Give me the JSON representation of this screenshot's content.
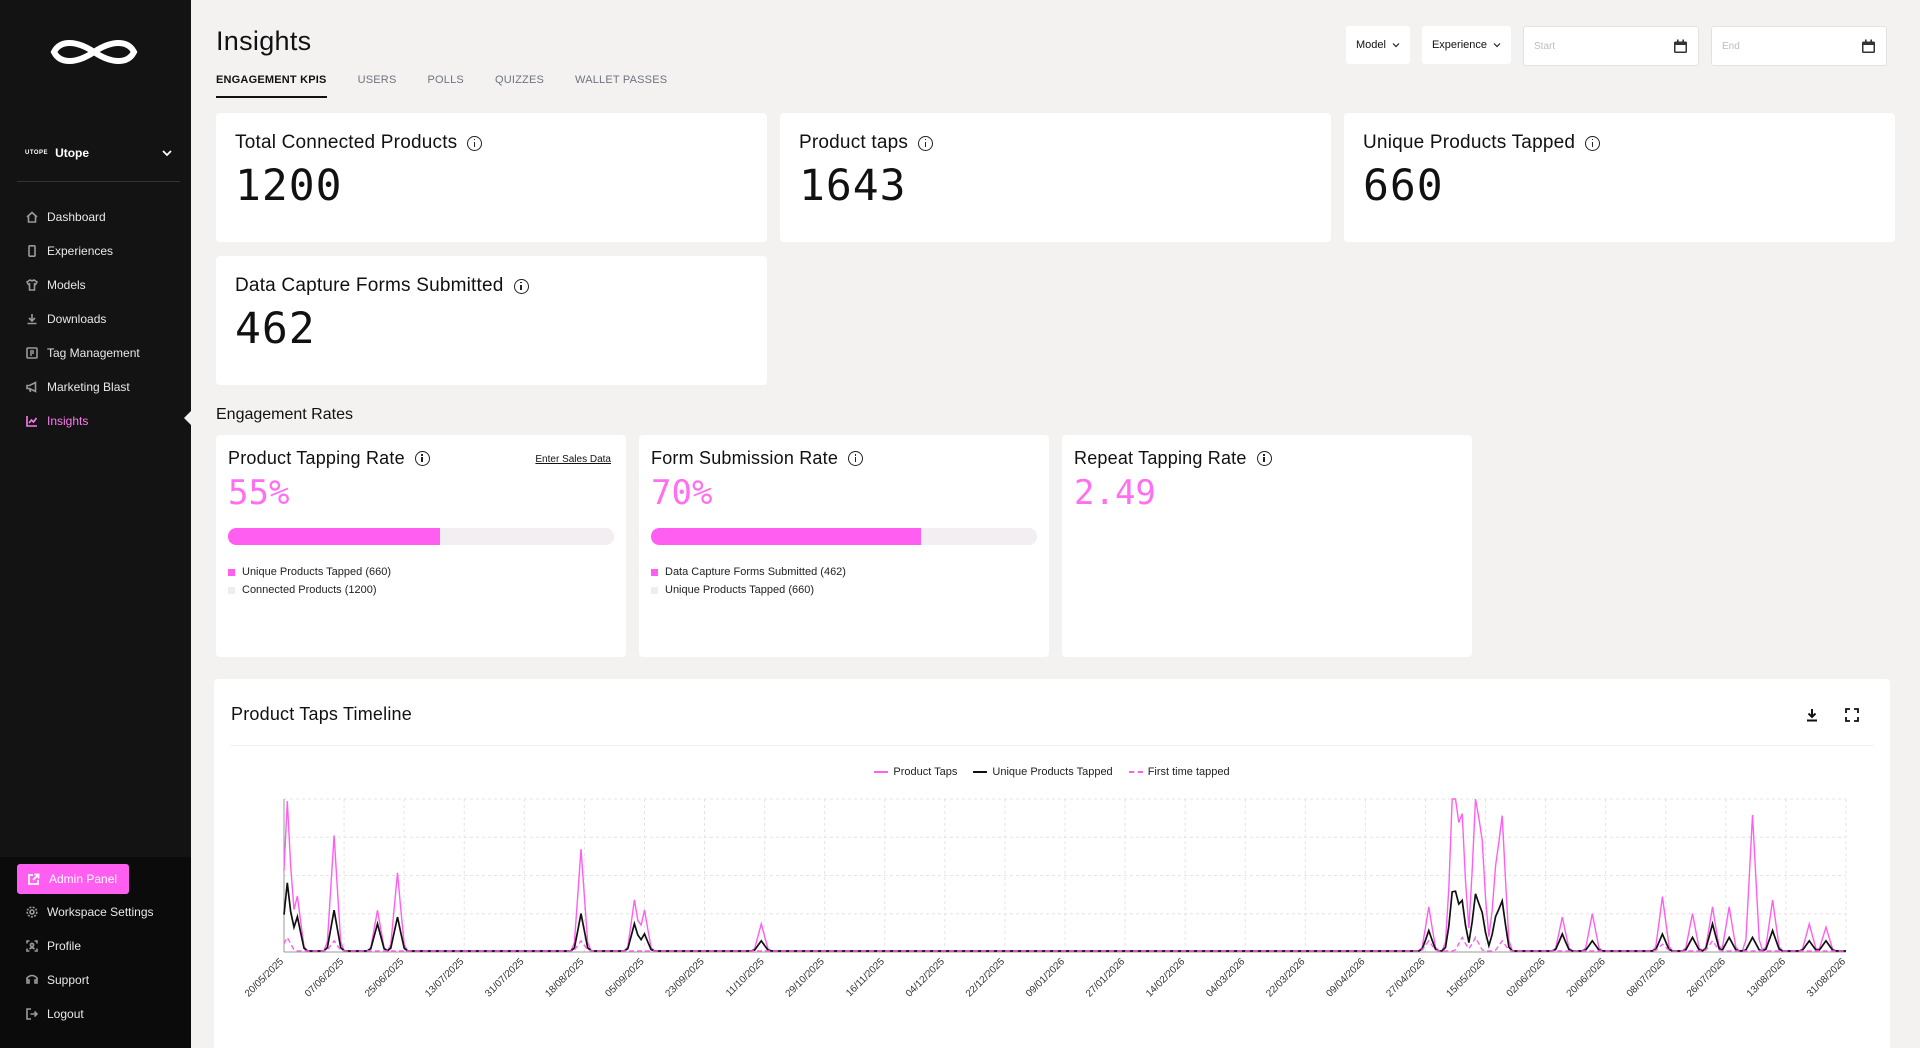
{
  "workspace": {
    "logo_text": "UTOPE",
    "name": "Utope"
  },
  "nav": [
    {
      "label": "Dashboard",
      "icon": "home-icon"
    },
    {
      "label": "Experiences",
      "icon": "phone-icon"
    },
    {
      "label": "Models",
      "icon": "shirt-icon"
    },
    {
      "label": "Downloads",
      "icon": "download-icon"
    },
    {
      "label": "Tag Management",
      "icon": "tag-icon"
    },
    {
      "label": "Marketing Blast",
      "icon": "megaphone-icon"
    },
    {
      "label": "Insights",
      "icon": "chart-icon",
      "active": true
    }
  ],
  "bottom_nav": {
    "admin_label": "Admin Panel",
    "workspace_settings": "Workspace Settings",
    "profile": "Profile",
    "support": "Support",
    "logout": "Logout"
  },
  "header": {
    "title": "Insights",
    "tabs": [
      "ENGAGEMENT KPIS",
      "USERS",
      "POLLS",
      "QUIZZES",
      "WALLET PASSES"
    ],
    "filters": {
      "model": "Model",
      "experience": "Experience",
      "start_placeholder": "Start",
      "end_placeholder": "End"
    }
  },
  "kpis": [
    {
      "label": "Total Connected Products",
      "value": "1200"
    },
    {
      "label": "Product taps",
      "value": "1643"
    },
    {
      "label": "Unique Products Tapped",
      "value": "660"
    },
    {
      "label": "Data Capture Forms Submitted",
      "value": "462"
    }
  ],
  "engagement": {
    "title": "Engagement Rates",
    "rates": [
      {
        "label": "Product Tapping Rate",
        "value": "55%",
        "fill": 0.55,
        "link": "Enter Sales Data",
        "legend": [
          "Unique Products Tapped (660)",
          "Connected Products (1200)"
        ]
      },
      {
        "label": "Form Submission Rate",
        "value": "70%",
        "fill": 0.7,
        "legend": [
          "Data Capture Forms Submitted (462)",
          "Unique Products Tapped (660)"
        ]
      },
      {
        "label": "Repeat Tapping Rate",
        "value": "2.49"
      }
    ]
  },
  "colors": {
    "accent": "#ff5ef0",
    "accent_text": "#ff6ff0",
    "track": "#f3eef2",
    "sidebar": "#131313"
  },
  "timeline": {
    "title": "Product Taps Timeline",
    "download_icon": "download-icon",
    "fullscreen_icon": "fullscreen-icon"
  },
  "chart_data": {
    "type": "line",
    "title": "Product Taps Timeline",
    "legend_position": "top-center",
    "grid": true,
    "x_tick_labels": [
      "20/05/2025",
      "07/06/2025",
      "25/06/2025",
      "13/07/2025",
      "31/07/2025",
      "18/08/2025",
      "05/09/2025",
      "23/09/2025",
      "11/10/2025",
      "29/10/2025",
      "16/11/2025",
      "04/12/2025",
      "22/12/2025",
      "09/01/2026",
      "27/01/2026",
      "14/02/2026",
      "04/03/2026",
      "22/03/2026",
      "09/04/2026",
      "27/04/2026",
      "15/05/2026",
      "02/06/2026",
      "20/06/2026",
      "08/07/2026",
      "26/07/2026",
      "13/08/2026",
      "31/08/2026"
    ],
    "x_range": [
      "20/05/2025",
      "31/08/2026"
    ],
    "series": [
      {
        "name": "Product Taps",
        "color": "#ff5ef0",
        "style": "solid",
        "peaks": [
          [
            1,
            44
          ],
          [
            4,
            16
          ],
          [
            15,
            34
          ],
          [
            28,
            12
          ],
          [
            34,
            23
          ],
          [
            89,
            30
          ],
          [
            105,
            15
          ],
          [
            108,
            12
          ],
          [
            143,
            8
          ],
          [
            343,
            13
          ],
          [
            350,
            30
          ],
          [
            351,
            28
          ],
          [
            353,
            38
          ],
          [
            357,
            44
          ],
          [
            359,
            29
          ],
          [
            363,
            22
          ],
          [
            365,
            38
          ],
          [
            383,
            10
          ],
          [
            392,
            11
          ],
          [
            413,
            16
          ],
          [
            422,
            11
          ],
          [
            428,
            13
          ],
          [
            433,
            13
          ],
          [
            440,
            40
          ],
          [
            446,
            15
          ],
          [
            457,
            8
          ],
          [
            462,
            7
          ]
        ]
      },
      {
        "name": "Unique Products Tapped",
        "color": "#111111",
        "style": "solid",
        "peaks": [
          [
            1,
            20
          ],
          [
            4,
            10
          ],
          [
            15,
            12
          ],
          [
            28,
            8
          ],
          [
            34,
            10
          ],
          [
            89,
            11
          ],
          [
            105,
            8
          ],
          [
            108,
            5
          ],
          [
            143,
            3
          ],
          [
            343,
            6
          ],
          [
            350,
            12
          ],
          [
            351,
            10
          ],
          [
            353,
            14
          ],
          [
            357,
            16
          ],
          [
            359,
            10
          ],
          [
            363,
            9
          ],
          [
            365,
            14
          ],
          [
            383,
            5
          ],
          [
            392,
            3
          ],
          [
            413,
            5
          ],
          [
            422,
            4
          ],
          [
            428,
            8
          ],
          [
            433,
            4
          ],
          [
            440,
            4
          ],
          [
            446,
            6
          ],
          [
            457,
            3
          ],
          [
            462,
            3
          ]
        ]
      },
      {
        "name": "First time tapped",
        "color": "#ff5ef0",
        "style": "dashed",
        "peaks": [
          [
            1,
            4
          ],
          [
            15,
            3
          ],
          [
            89,
            3
          ],
          [
            343,
            3
          ],
          [
            353,
            4
          ],
          [
            357,
            4
          ],
          [
            365,
            3
          ],
          [
            413,
            2
          ],
          [
            428,
            3
          ]
        ]
      }
    ],
    "y_range": [
      0,
      45
    ]
  }
}
